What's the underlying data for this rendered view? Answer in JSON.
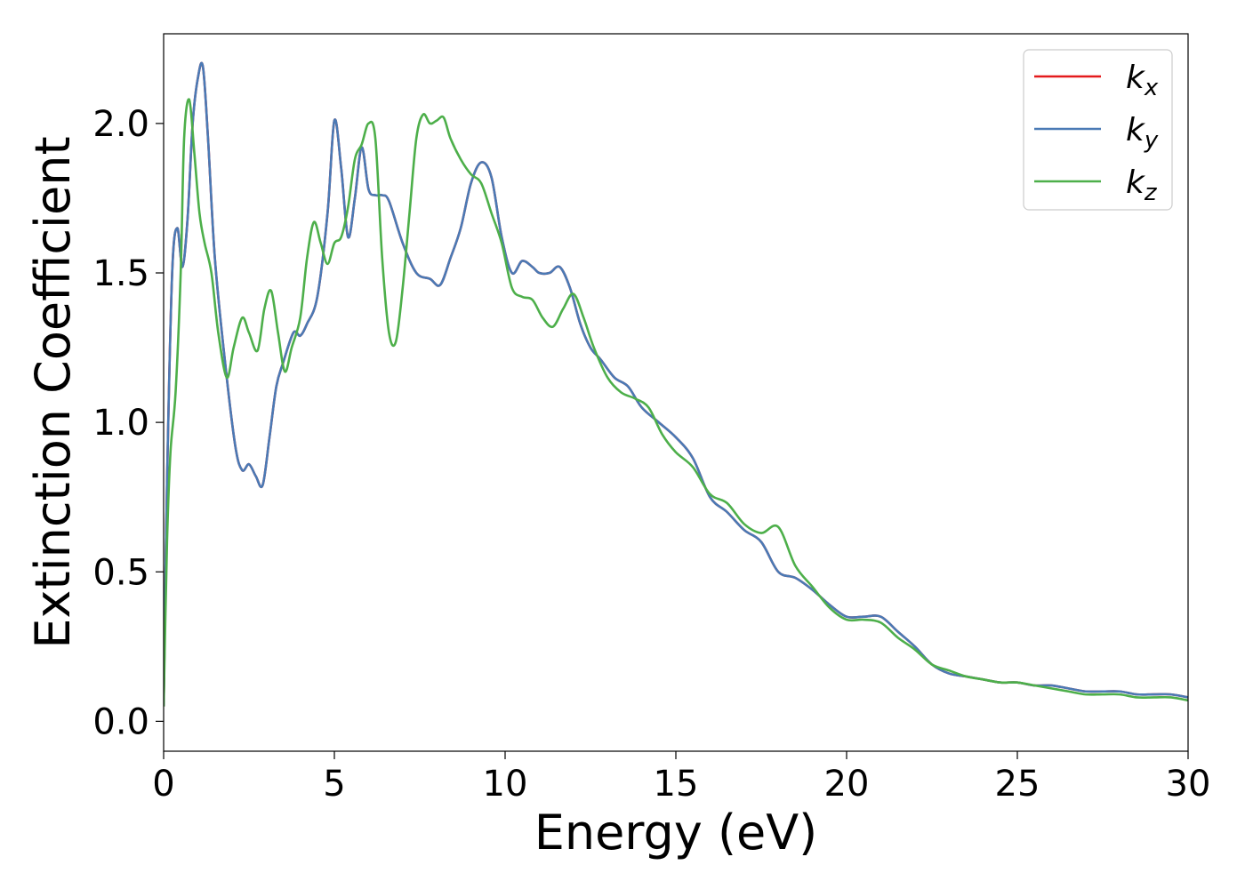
{
  "chart_data": {
    "type": "line",
    "title": "",
    "xlabel": "Energy (eV)",
    "ylabel": "Extinction Coefficient",
    "xlim": [
      0,
      30
    ],
    "ylim": [
      -0.1,
      2.3
    ],
    "xticks": [
      0,
      5,
      10,
      15,
      20,
      25,
      30
    ],
    "yticks": [
      0.0,
      0.5,
      1.0,
      1.5,
      2.0
    ],
    "xtick_labels": [
      "0",
      "5",
      "10",
      "15",
      "20",
      "25",
      "30"
    ],
    "ytick_labels": [
      "0.0",
      "0.5",
      "1.0",
      "1.5",
      "2.0"
    ],
    "grid": false,
    "legend_position": "top-right",
    "series": [
      {
        "name": "k_x",
        "label_main": "k",
        "label_sub": "x",
        "color": "#e41a1c",
        "x": [
          0,
          0.1,
          0.25,
          0.4,
          0.55,
          0.7,
          0.85,
          1.0,
          1.15,
          1.3,
          1.5,
          1.8,
          2.1,
          2.3,
          2.5,
          2.7,
          2.9,
          3.1,
          3.3,
          3.5,
          3.8,
          4.0,
          4.2,
          4.5,
          4.8,
          5.0,
          5.2,
          5.4,
          5.6,
          5.8,
          6.0,
          6.2,
          6.4,
          6.6,
          7.0,
          7.4,
          7.8,
          8.1,
          8.4,
          8.7,
          9.0,
          9.3,
          9.6,
          9.9,
          10.2,
          10.5,
          10.8,
          11.0,
          11.3,
          11.6,
          11.9,
          12.2,
          12.5,
          12.8,
          13.2,
          13.6,
          14.0,
          14.5,
          15.0,
          15.5,
          16.0,
          16.5,
          17.0,
          17.5,
          18.0,
          18.5,
          19.0,
          19.5,
          20.0,
          20.5,
          21.0,
          21.5,
          22.0,
          22.5,
          23.0,
          23.5,
          24.0,
          24.5,
          25.0,
          25.5,
          26.0,
          26.5,
          27.0,
          27.5,
          28.0,
          28.5,
          29.0,
          29.5,
          30.0
        ],
        "y": [
          0.05,
          0.8,
          1.5,
          1.65,
          1.52,
          1.68,
          2.0,
          2.15,
          2.19,
          1.95,
          1.55,
          1.2,
          0.92,
          0.84,
          0.86,
          0.82,
          0.79,
          0.95,
          1.12,
          1.2,
          1.3,
          1.29,
          1.33,
          1.42,
          1.7,
          2.01,
          1.85,
          1.62,
          1.75,
          1.92,
          1.78,
          1.76,
          1.76,
          1.74,
          1.6,
          1.5,
          1.48,
          1.46,
          1.55,
          1.65,
          1.8,
          1.87,
          1.82,
          1.62,
          1.5,
          1.54,
          1.52,
          1.5,
          1.5,
          1.52,
          1.45,
          1.33,
          1.25,
          1.21,
          1.15,
          1.12,
          1.05,
          1.0,
          0.95,
          0.88,
          0.75,
          0.7,
          0.64,
          0.6,
          0.5,
          0.48,
          0.44,
          0.39,
          0.35,
          0.35,
          0.35,
          0.3,
          0.25,
          0.19,
          0.16,
          0.15,
          0.14,
          0.13,
          0.13,
          0.12,
          0.12,
          0.11,
          0.1,
          0.1,
          0.1,
          0.09,
          0.09,
          0.09,
          0.08
        ]
      },
      {
        "name": "k_y",
        "label_main": "k",
        "label_sub": "y",
        "color": "#4a7ab5",
        "x": [
          0,
          0.1,
          0.25,
          0.4,
          0.55,
          0.7,
          0.85,
          1.0,
          1.15,
          1.3,
          1.5,
          1.8,
          2.1,
          2.3,
          2.5,
          2.7,
          2.9,
          3.1,
          3.3,
          3.5,
          3.8,
          4.0,
          4.2,
          4.5,
          4.8,
          5.0,
          5.2,
          5.4,
          5.6,
          5.8,
          6.0,
          6.2,
          6.4,
          6.6,
          7.0,
          7.4,
          7.8,
          8.1,
          8.4,
          8.7,
          9.0,
          9.3,
          9.6,
          9.9,
          10.2,
          10.5,
          10.8,
          11.0,
          11.3,
          11.6,
          11.9,
          12.2,
          12.5,
          12.8,
          13.2,
          13.6,
          14.0,
          14.5,
          15.0,
          15.5,
          16.0,
          16.5,
          17.0,
          17.5,
          18.0,
          18.5,
          19.0,
          19.5,
          20.0,
          20.5,
          21.0,
          21.5,
          22.0,
          22.5,
          23.0,
          23.5,
          24.0,
          24.5,
          25.0,
          25.5,
          26.0,
          26.5,
          27.0,
          27.5,
          28.0,
          28.5,
          29.0,
          29.5,
          30.0
        ],
        "y": [
          0.05,
          0.8,
          1.5,
          1.65,
          1.52,
          1.68,
          2.0,
          2.15,
          2.19,
          1.95,
          1.55,
          1.2,
          0.92,
          0.84,
          0.86,
          0.82,
          0.79,
          0.95,
          1.12,
          1.2,
          1.3,
          1.29,
          1.33,
          1.42,
          1.7,
          2.01,
          1.85,
          1.62,
          1.75,
          1.92,
          1.78,
          1.76,
          1.76,
          1.74,
          1.6,
          1.5,
          1.48,
          1.46,
          1.55,
          1.65,
          1.8,
          1.87,
          1.82,
          1.62,
          1.5,
          1.54,
          1.52,
          1.5,
          1.5,
          1.52,
          1.45,
          1.33,
          1.25,
          1.21,
          1.15,
          1.12,
          1.05,
          1.0,
          0.95,
          0.88,
          0.75,
          0.7,
          0.64,
          0.6,
          0.5,
          0.48,
          0.44,
          0.39,
          0.35,
          0.35,
          0.35,
          0.3,
          0.25,
          0.19,
          0.16,
          0.15,
          0.14,
          0.13,
          0.13,
          0.12,
          0.12,
          0.11,
          0.1,
          0.1,
          0.1,
          0.09,
          0.09,
          0.09,
          0.08
        ]
      },
      {
        "name": "k_z",
        "label_main": "k",
        "label_sub": "z",
        "color": "#4daf4a",
        "x": [
          0,
          0.1,
          0.2,
          0.35,
          0.5,
          0.6,
          0.75,
          0.9,
          1.05,
          1.2,
          1.4,
          1.6,
          1.85,
          2.05,
          2.3,
          2.5,
          2.75,
          2.95,
          3.15,
          3.35,
          3.55,
          3.75,
          4.0,
          4.2,
          4.4,
          4.6,
          4.8,
          5.0,
          5.2,
          5.4,
          5.6,
          5.8,
          6.0,
          6.2,
          6.4,
          6.6,
          6.8,
          7.0,
          7.2,
          7.4,
          7.6,
          7.8,
          8.0,
          8.2,
          8.4,
          8.7,
          9.0,
          9.3,
          9.6,
          9.9,
          10.2,
          10.5,
          10.8,
          11.1,
          11.4,
          11.7,
          12.0,
          12.3,
          12.6,
          13.0,
          13.4,
          13.8,
          14.2,
          14.6,
          15.0,
          15.5,
          16.0,
          16.5,
          17.0,
          17.5,
          18.0,
          18.5,
          19.0,
          19.5,
          20.0,
          20.5,
          21.0,
          21.5,
          22.0,
          22.5,
          23.0,
          23.5,
          24.0,
          24.5,
          25.0,
          25.5,
          26.0,
          26.5,
          27.0,
          27.5,
          28.0,
          28.5,
          29.0,
          29.5,
          30.0
        ],
        "y": [
          0.05,
          0.6,
          0.9,
          1.1,
          1.5,
          1.95,
          2.08,
          1.9,
          1.7,
          1.6,
          1.5,
          1.3,
          1.15,
          1.25,
          1.35,
          1.3,
          1.24,
          1.38,
          1.44,
          1.3,
          1.17,
          1.25,
          1.35,
          1.55,
          1.67,
          1.6,
          1.53,
          1.6,
          1.62,
          1.72,
          1.88,
          1.93,
          2.0,
          1.95,
          1.55,
          1.3,
          1.27,
          1.45,
          1.7,
          1.95,
          2.03,
          2.0,
          2.01,
          2.02,
          1.95,
          1.88,
          1.83,
          1.8,
          1.7,
          1.6,
          1.45,
          1.42,
          1.41,
          1.35,
          1.32,
          1.38,
          1.43,
          1.35,
          1.25,
          1.15,
          1.1,
          1.08,
          1.05,
          0.96,
          0.9,
          0.85,
          0.76,
          0.73,
          0.66,
          0.63,
          0.65,
          0.52,
          0.45,
          0.38,
          0.34,
          0.34,
          0.33,
          0.28,
          0.24,
          0.19,
          0.17,
          0.15,
          0.14,
          0.13,
          0.13,
          0.12,
          0.11,
          0.1,
          0.09,
          0.09,
          0.09,
          0.08,
          0.08,
          0.08,
          0.07
        ]
      }
    ]
  }
}
